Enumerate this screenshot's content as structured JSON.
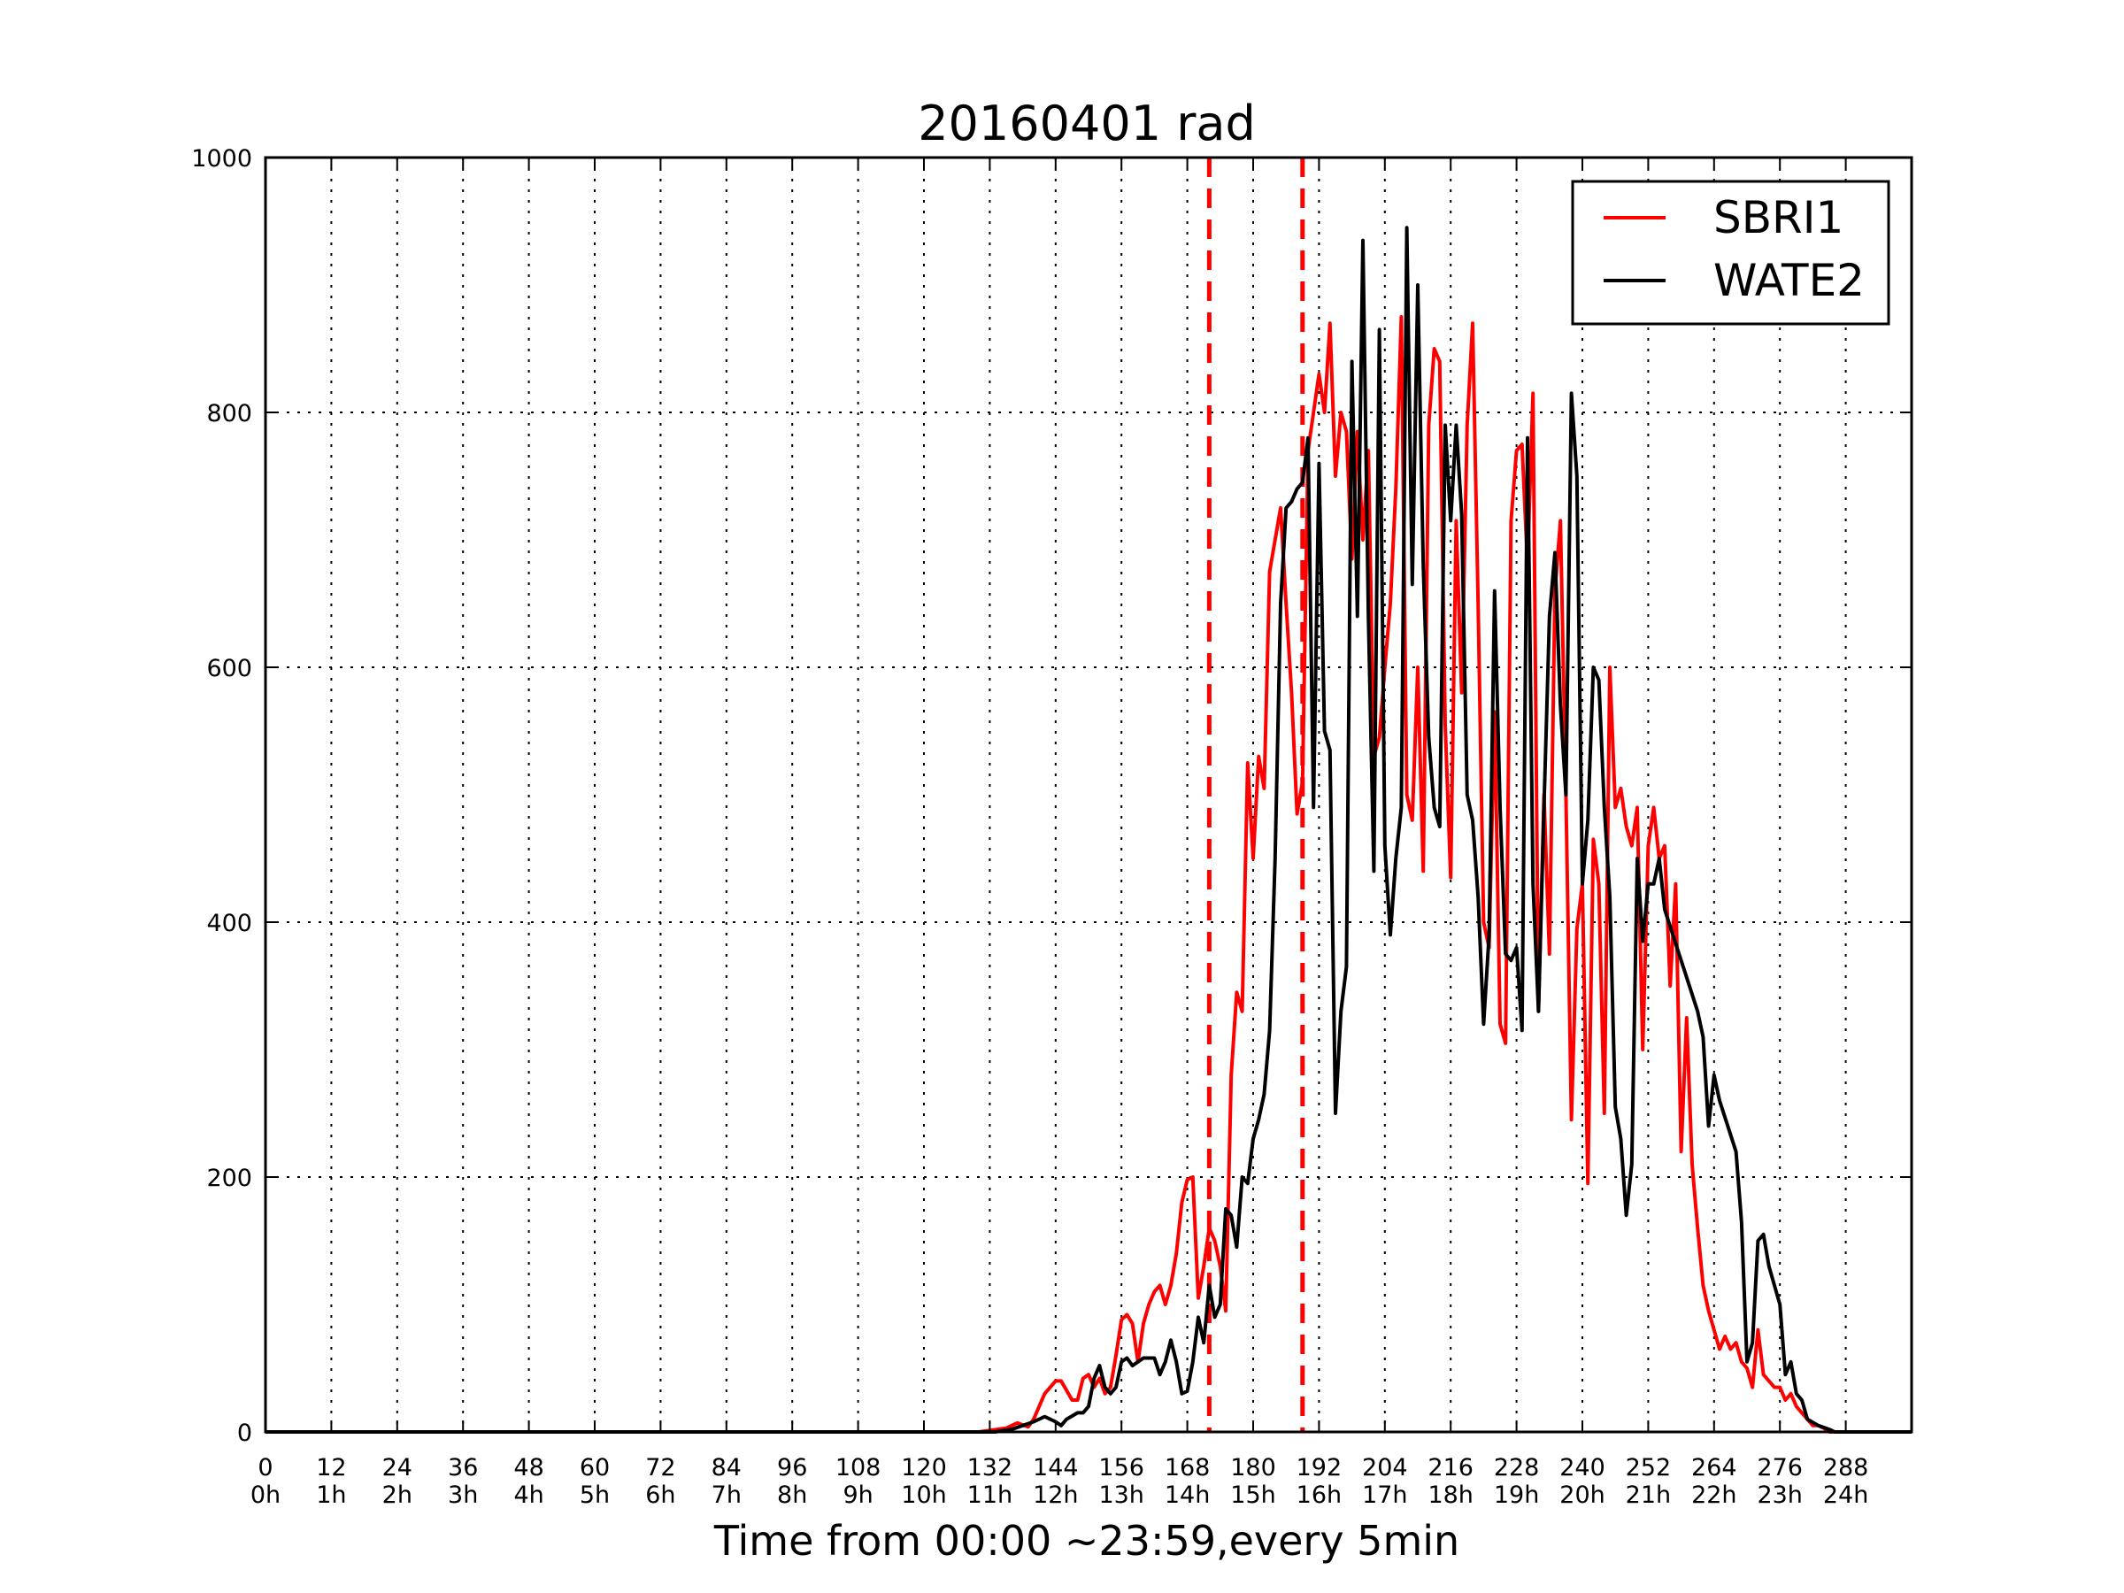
{
  "chart_data": {
    "type": "line",
    "title": "20160401 rad",
    "xlabel": "Time from 00:00 ~23:59,every 5min",
    "ylabel": "",
    "xlim": [
      0,
      300
    ],
    "ylim": [
      0,
      1000
    ],
    "grid": true,
    "legend_position": "top-right",
    "x_ticks": [
      0,
      12,
      24,
      36,
      48,
      60,
      72,
      84,
      96,
      108,
      120,
      132,
      144,
      156,
      168,
      180,
      192,
      204,
      216,
      228,
      240,
      252,
      264,
      276,
      288
    ],
    "x_tick_labels": [
      "0",
      "12",
      "24",
      "36",
      "48",
      "60",
      "72",
      "84",
      "96",
      "108",
      "120",
      "132",
      "144",
      "156",
      "168",
      "180",
      "192",
      "204",
      "216",
      "228",
      "240",
      "252",
      "264",
      "276",
      "288"
    ],
    "x_tick_hour_labels": [
      "0h",
      "1h",
      "2h",
      "3h",
      "4h",
      "5h",
      "6h",
      "7h",
      "8h",
      "9h",
      "10h",
      "11h",
      "12h",
      "13h",
      "14h",
      "15h",
      "16h",
      "17h",
      "18h",
      "19h",
      "20h",
      "21h",
      "22h",
      "23h",
      "24h"
    ],
    "y_ticks": [
      0,
      200,
      400,
      600,
      800,
      1000
    ],
    "y_tick_labels": [
      "0",
      "200",
      "400",
      "600",
      "800",
      "1000"
    ],
    "vlines": [
      {
        "x": 172,
        "color": "#ff0000",
        "style": "dashed"
      },
      {
        "x": 189,
        "color": "#ff0000",
        "style": "dashed"
      }
    ],
    "series": [
      {
        "name": "SBRI1",
        "color": "#ff0000",
        "points": [
          [
            0,
            0
          ],
          [
            130,
            0
          ],
          [
            135,
            3
          ],
          [
            137,
            7
          ],
          [
            139,
            4
          ],
          [
            140,
            10
          ],
          [
            142,
            30
          ],
          [
            144,
            40
          ],
          [
            145,
            40
          ],
          [
            147,
            25
          ],
          [
            148,
            25
          ],
          [
            149,
            42
          ],
          [
            150,
            45
          ],
          [
            151,
            35
          ],
          [
            152,
            42
          ],
          [
            153,
            30
          ],
          [
            154,
            35
          ],
          [
            155,
            60
          ],
          [
            156,
            88
          ],
          [
            157,
            92
          ],
          [
            158,
            85
          ],
          [
            159,
            55
          ],
          [
            160,
            85
          ],
          [
            161,
            100
          ],
          [
            162,
            110
          ],
          [
            163,
            115
          ],
          [
            164,
            100
          ],
          [
            165,
            115
          ],
          [
            166,
            140
          ],
          [
            167,
            180
          ],
          [
            168,
            198
          ],
          [
            169,
            200
          ],
          [
            170,
            105
          ],
          [
            171,
            130
          ],
          [
            172,
            160
          ],
          [
            173,
            150
          ],
          [
            174,
            130
          ],
          [
            175,
            95
          ],
          [
            176,
            280
          ],
          [
            177,
            345
          ],
          [
            178,
            330
          ],
          [
            179,
            525
          ],
          [
            180,
            450
          ],
          [
            181,
            530
          ],
          [
            182,
            505
          ],
          [
            183,
            675
          ],
          [
            184,
            700
          ],
          [
            185,
            725
          ],
          [
            186,
            650
          ],
          [
            187,
            580
          ],
          [
            188,
            485
          ],
          [
            189,
            510
          ],
          [
            190,
            770
          ],
          [
            191,
            800
          ],
          [
            192,
            830
          ],
          [
            193,
            800
          ],
          [
            194,
            870
          ],
          [
            195,
            750
          ],
          [
            196,
            800
          ],
          [
            197,
            785
          ],
          [
            198,
            685
          ],
          [
            199,
            785
          ],
          [
            200,
            700
          ],
          [
            201,
            770
          ],
          [
            202,
            530
          ],
          [
            203,
            545
          ],
          [
            204,
            600
          ],
          [
            205,
            650
          ],
          [
            206,
            740
          ],
          [
            207,
            875
          ],
          [
            208,
            500
          ],
          [
            209,
            480
          ],
          [
            210,
            600
          ],
          [
            211,
            440
          ],
          [
            212,
            790
          ],
          [
            213,
            850
          ],
          [
            214,
            840
          ],
          [
            215,
            555
          ],
          [
            216,
            435
          ],
          [
            217,
            715
          ],
          [
            218,
            580
          ],
          [
            219,
            790
          ],
          [
            220,
            870
          ],
          [
            221,
            650
          ],
          [
            222,
            400
          ],
          [
            223,
            380
          ],
          [
            224,
            565
          ],
          [
            225,
            320
          ],
          [
            226,
            305
          ],
          [
            227,
            715
          ],
          [
            228,
            770
          ],
          [
            229,
            775
          ],
          [
            230,
            680
          ],
          [
            231,
            815
          ],
          [
            232,
            330
          ],
          [
            233,
            500
          ],
          [
            234,
            375
          ],
          [
            235,
            660
          ],
          [
            236,
            715
          ],
          [
            237,
            500
          ],
          [
            238,
            245
          ],
          [
            239,
            395
          ],
          [
            240,
            430
          ],
          [
            241,
            195
          ],
          [
            242,
            465
          ],
          [
            243,
            430
          ],
          [
            244,
            250
          ],
          [
            245,
            600
          ],
          [
            246,
            490
          ],
          [
            247,
            505
          ],
          [
            248,
            475
          ],
          [
            249,
            460
          ],
          [
            250,
            490
          ],
          [
            251,
            300
          ],
          [
            252,
            460
          ],
          [
            253,
            490
          ],
          [
            254,
            450
          ],
          [
            255,
            460
          ],
          [
            256,
            350
          ],
          [
            257,
            430
          ],
          [
            258,
            220
          ],
          [
            259,
            325
          ],
          [
            260,
            210
          ],
          [
            261,
            160
          ],
          [
            262,
            115
          ],
          [
            263,
            95
          ],
          [
            264,
            80
          ],
          [
            265,
            65
          ],
          [
            266,
            75
          ],
          [
            267,
            65
          ],
          [
            268,
            70
          ],
          [
            269,
            55
          ],
          [
            270,
            50
          ],
          [
            271,
            35
          ],
          [
            272,
            80
          ],
          [
            273,
            45
          ],
          [
            274,
            40
          ],
          [
            275,
            35
          ],
          [
            276,
            35
          ],
          [
            277,
            25
          ],
          [
            278,
            30
          ],
          [
            279,
            20
          ],
          [
            280,
            15
          ],
          [
            281,
            10
          ],
          [
            282,
            5
          ],
          [
            283,
            5
          ],
          [
            284,
            3
          ],
          [
            285,
            0
          ],
          [
            300,
            0
          ]
        ]
      },
      {
        "name": "WATE2",
        "color": "#000000",
        "points": [
          [
            0,
            0
          ],
          [
            133,
            0
          ],
          [
            136,
            2
          ],
          [
            138,
            5
          ],
          [
            140,
            8
          ],
          [
            142,
            12
          ],
          [
            144,
            8
          ],
          [
            145,
            5
          ],
          [
            146,
            10
          ],
          [
            148,
            15
          ],
          [
            149,
            15
          ],
          [
            150,
            20
          ],
          [
            151,
            42
          ],
          [
            152,
            52
          ],
          [
            153,
            35
          ],
          [
            154,
            30
          ],
          [
            155,
            35
          ],
          [
            156,
            55
          ],
          [
            157,
            58
          ],
          [
            158,
            52
          ],
          [
            159,
            55
          ],
          [
            160,
            58
          ],
          [
            161,
            58
          ],
          [
            162,
            58
          ],
          [
            163,
            45
          ],
          [
            164,
            55
          ],
          [
            165,
            72
          ],
          [
            166,
            55
          ],
          [
            167,
            30
          ],
          [
            168,
            32
          ],
          [
            169,
            55
          ],
          [
            170,
            90
          ],
          [
            171,
            70
          ],
          [
            172,
            115
          ],
          [
            173,
            90
          ],
          [
            174,
            100
          ],
          [
            175,
            175
          ],
          [
            176,
            170
          ],
          [
            177,
            145
          ],
          [
            178,
            200
          ],
          [
            179,
            195
          ],
          [
            180,
            230
          ],
          [
            181,
            245
          ],
          [
            182,
            265
          ],
          [
            183,
            315
          ],
          [
            184,
            450
          ],
          [
            185,
            650
          ],
          [
            186,
            725
          ],
          [
            187,
            730
          ],
          [
            188,
            740
          ],
          [
            189,
            745
          ],
          [
            190,
            780
          ],
          [
            191,
            490
          ],
          [
            192,
            760
          ],
          [
            193,
            550
          ],
          [
            194,
            535
          ],
          [
            195,
            250
          ],
          [
            196,
            330
          ],
          [
            197,
            365
          ],
          [
            198,
            840
          ],
          [
            199,
            640
          ],
          [
            200,
            935
          ],
          [
            201,
            640
          ],
          [
            202,
            440
          ],
          [
            203,
            865
          ],
          [
            204,
            460
          ],
          [
            205,
            390
          ],
          [
            206,
            450
          ],
          [
            207,
            490
          ],
          [
            208,
            945
          ],
          [
            209,
            665
          ],
          [
            210,
            900
          ],
          [
            211,
            680
          ],
          [
            212,
            545
          ],
          [
            213,
            490
          ],
          [
            214,
            475
          ],
          [
            215,
            790
          ],
          [
            216,
            715
          ],
          [
            217,
            790
          ],
          [
            218,
            720
          ],
          [
            219,
            500
          ],
          [
            220,
            480
          ],
          [
            221,
            420
          ],
          [
            222,
            320
          ],
          [
            223,
            390
          ],
          [
            224,
            660
          ],
          [
            225,
            490
          ],
          [
            226,
            375
          ],
          [
            227,
            370
          ],
          [
            228,
            380
          ],
          [
            229,
            315
          ],
          [
            230,
            780
          ],
          [
            231,
            430
          ],
          [
            232,
            330
          ],
          [
            233,
            490
          ],
          [
            234,
            640
          ],
          [
            235,
            690
          ],
          [
            236,
            570
          ],
          [
            237,
            500
          ],
          [
            238,
            815
          ],
          [
            239,
            750
          ],
          [
            240,
            430
          ],
          [
            241,
            480
          ],
          [
            242,
            600
          ],
          [
            243,
            590
          ],
          [
            244,
            490
          ],
          [
            245,
            420
          ],
          [
            246,
            255
          ],
          [
            247,
            230
          ],
          [
            248,
            170
          ],
          [
            249,
            210
          ],
          [
            250,
            450
          ],
          [
            251,
            385
          ],
          [
            252,
            430
          ],
          [
            253,
            430
          ],
          [
            254,
            450
          ],
          [
            255,
            410
          ],
          [
            258,
            370
          ],
          [
            261,
            330
          ],
          [
            262,
            310
          ],
          [
            263,
            240
          ],
          [
            264,
            280
          ],
          [
            265,
            260
          ],
          [
            268,
            220
          ],
          [
            269,
            165
          ],
          [
            270,
            55
          ],
          [
            271,
            70
          ],
          [
            272,
            150
          ],
          [
            273,
            155
          ],
          [
            274,
            130
          ],
          [
            276,
            100
          ],
          [
            277,
            45
          ],
          [
            278,
            55
          ],
          [
            279,
            30
          ],
          [
            280,
            25
          ],
          [
            281,
            10
          ],
          [
            283,
            5
          ],
          [
            285,
            2
          ],
          [
            286,
            0
          ],
          [
            300,
            0
          ]
        ]
      }
    ]
  }
}
